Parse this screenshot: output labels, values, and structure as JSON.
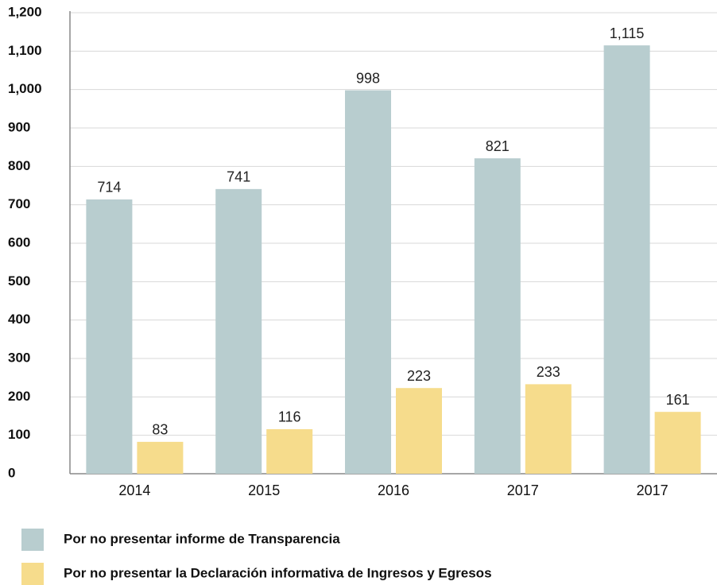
{
  "chart_data": {
    "type": "bar",
    "categories": [
      "2014",
      "2015",
      "2016",
      "2017",
      "2017"
    ],
    "series": [
      {
        "name": "Por no presentar informe de Transparencia",
        "color": "#b8cdcf",
        "values": [
          714,
          741,
          998,
          821,
          1115
        ],
        "value_labels": [
          "714",
          "741",
          "998",
          "821",
          "1,115"
        ]
      },
      {
        "name": "Por no presentar la Declaración informativa de Ingresos y Egresos",
        "color": "#f6dc8c",
        "values": [
          83,
          116,
          223,
          233,
          161
        ]
      }
    ],
    "ylim": [
      0,
      1200
    ],
    "yticks": [
      0,
      100,
      200,
      300,
      400,
      500,
      600,
      700,
      800,
      900,
      {
        "value": 1000,
        "label": "1,000"
      },
      {
        "value": 1100,
        "label": "1,100"
      },
      {
        "value": 1200,
        "label": "1,200"
      }
    ],
    "grid": true
  }
}
